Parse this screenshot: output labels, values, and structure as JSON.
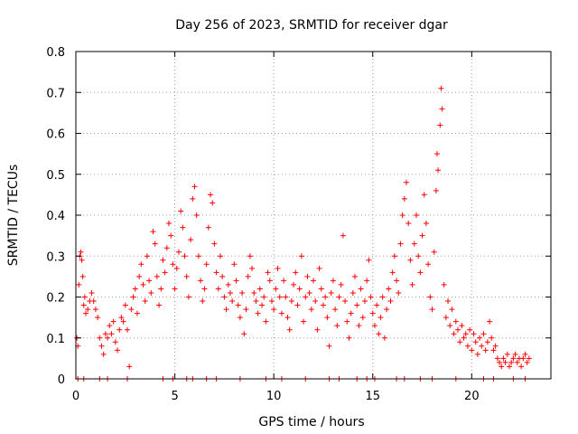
{
  "chart_data": {
    "type": "scatter",
    "title": "Day 256 of 2023, SRMTID for receiver dgar",
    "xlabel": "GPS time / hours",
    "ylabel": "SRMTID / TECUs",
    "xlim": [
      0,
      24
    ],
    "ylim": [
      0,
      0.8
    ],
    "xticks": [
      0,
      5,
      10,
      15,
      20
    ],
    "xtick_labels": [
      "0",
      "5",
      "10",
      "15",
      "20"
    ],
    "yticks": [
      0,
      0.1,
      0.2,
      0.3,
      0.4,
      0.5,
      0.6,
      0.7,
      0.8
    ],
    "ytick_labels": [
      "0",
      "0.1",
      "0.2",
      "0.3",
      "0.4",
      "0.5",
      "0.6",
      "0.7",
      "0.8"
    ],
    "grid": true,
    "marker": "+",
    "color": "#ff0000",
    "series": [
      {
        "name": "SRMTID",
        "points": [
          [
            0.05,
            0.1
          ],
          [
            0.1,
            0.08
          ],
          [
            0.15,
            0.23
          ],
          [
            0.2,
            0.3
          ],
          [
            0.25,
            0.31
          ],
          [
            0.3,
            0.29
          ],
          [
            0.35,
            0.25
          ],
          [
            0.4,
            0.18
          ],
          [
            0.45,
            0.2
          ],
          [
            0.5,
            0.16
          ],
          [
            0.6,
            0.17
          ],
          [
            0.7,
            0.19
          ],
          [
            0.8,
            0.21
          ],
          [
            0.9,
            0.19
          ],
          [
            1.0,
            0.17
          ],
          [
            1.1,
            0.15
          ],
          [
            1.2,
            0.1
          ],
          [
            1.3,
            0.08
          ],
          [
            1.4,
            0.06
          ],
          [
            1.5,
            0.11
          ],
          [
            1.6,
            0.1
          ],
          [
            1.7,
            0.13
          ],
          [
            1.8,
            0.11
          ],
          [
            1.9,
            0.14
          ],
          [
            2.0,
            0.09
          ],
          [
            2.1,
            0.07
          ],
          [
            2.2,
            0.12
          ],
          [
            2.3,
            0.15
          ],
          [
            2.4,
            0.14
          ],
          [
            2.5,
            0.18
          ],
          [
            2.6,
            0.12
          ],
          [
            2.7,
            0.03
          ],
          [
            2.8,
            0.17
          ],
          [
            2.9,
            0.2
          ],
          [
            3.0,
            0.22
          ],
          [
            3.1,
            0.16
          ],
          [
            3.2,
            0.25
          ],
          [
            3.3,
            0.28
          ],
          [
            3.4,
            0.23
          ],
          [
            3.5,
            0.19
          ],
          [
            3.6,
            0.3
          ],
          [
            3.7,
            0.24
          ],
          [
            3.8,
            0.21
          ],
          [
            3.9,
            0.36
          ],
          [
            4.0,
            0.33
          ],
          [
            4.1,
            0.25
          ],
          [
            4.2,
            0.18
          ],
          [
            4.3,
            0.22
          ],
          [
            4.4,
            0.29
          ],
          [
            4.5,
            0.26
          ],
          [
            4.6,
            0.32
          ],
          [
            4.7,
            0.38
          ],
          [
            4.8,
            0.35
          ],
          [
            4.9,
            0.28
          ],
          [
            5.0,
            0.22
          ],
          [
            5.1,
            0.27
          ],
          [
            5.2,
            0.31
          ],
          [
            5.3,
            0.41
          ],
          [
            5.4,
            0.37
          ],
          [
            5.5,
            0.3
          ],
          [
            5.6,
            0.25
          ],
          [
            5.7,
            0.2
          ],
          [
            5.8,
            0.34
          ],
          [
            5.9,
            0.44
          ],
          [
            6.0,
            0.47
          ],
          [
            6.1,
            0.4
          ],
          [
            6.2,
            0.3
          ],
          [
            6.3,
            0.24
          ],
          [
            6.4,
            0.19
          ],
          [
            6.5,
            0.22
          ],
          [
            6.6,
            0.28
          ],
          [
            6.7,
            0.37
          ],
          [
            6.8,
            0.45
          ],
          [
            6.9,
            0.43
          ],
          [
            7.0,
            0.33
          ],
          [
            7.1,
            0.26
          ],
          [
            7.2,
            0.22
          ],
          [
            7.3,
            0.3
          ],
          [
            7.4,
            0.25
          ],
          [
            7.5,
            0.2
          ],
          [
            7.6,
            0.17
          ],
          [
            7.7,
            0.23
          ],
          [
            7.8,
            0.21
          ],
          [
            7.9,
            0.19
          ],
          [
            8.0,
            0.28
          ],
          [
            8.1,
            0.24
          ],
          [
            8.2,
            0.18
          ],
          [
            8.3,
            0.15
          ],
          [
            8.4,
            0.21
          ],
          [
            8.5,
            0.11
          ],
          [
            8.6,
            0.17
          ],
          [
            8.7,
            0.25
          ],
          [
            8.8,
            0.3
          ],
          [
            8.9,
            0.27
          ],
          [
            9.0,
            0.21
          ],
          [
            9.1,
            0.19
          ],
          [
            9.2,
            0.16
          ],
          [
            9.3,
            0.22
          ],
          [
            9.4,
            0.18
          ],
          [
            9.5,
            0.2
          ],
          [
            9.6,
            0.14
          ],
          [
            9.7,
            0.26
          ],
          [
            9.8,
            0.24
          ],
          [
            9.9,
            0.19
          ],
          [
            10.0,
            0.17
          ],
          [
            10.1,
            0.22
          ],
          [
            10.2,
            0.27
          ],
          [
            10.3,
            0.2
          ],
          [
            10.4,
            0.16
          ],
          [
            10.5,
            0.24
          ],
          [
            10.6,
            0.2
          ],
          [
            10.7,
            0.15
          ],
          [
            10.8,
            0.12
          ],
          [
            10.9,
            0.19
          ],
          [
            11.0,
            0.23
          ],
          [
            11.1,
            0.26
          ],
          [
            11.2,
            0.18
          ],
          [
            11.3,
            0.22
          ],
          [
            11.4,
            0.3
          ],
          [
            11.5,
            0.14
          ],
          [
            11.6,
            0.2
          ],
          [
            11.7,
            0.25
          ],
          [
            11.8,
            0.21
          ],
          [
            11.9,
            0.17
          ],
          [
            12.0,
            0.24
          ],
          [
            12.1,
            0.19
          ],
          [
            12.2,
            0.12
          ],
          [
            12.3,
            0.27
          ],
          [
            12.4,
            0.22
          ],
          [
            12.5,
            0.18
          ],
          [
            12.6,
            0.2
          ],
          [
            12.7,
            0.15
          ],
          [
            12.8,
            0.08
          ],
          [
            12.9,
            0.21
          ],
          [
            13.0,
            0.24
          ],
          [
            13.1,
            0.17
          ],
          [
            13.2,
            0.13
          ],
          [
            13.3,
            0.2
          ],
          [
            13.4,
            0.23
          ],
          [
            13.5,
            0.35
          ],
          [
            13.6,
            0.19
          ],
          [
            13.7,
            0.14
          ],
          [
            13.8,
            0.1
          ],
          [
            13.9,
            0.16
          ],
          [
            14.0,
            0.21
          ],
          [
            14.1,
            0.25
          ],
          [
            14.2,
            0.18
          ],
          [
            14.3,
            0.13
          ],
          [
            14.4,
            0.22
          ],
          [
            14.5,
            0.15
          ],
          [
            14.6,
            0.19
          ],
          [
            14.7,
            0.24
          ],
          [
            14.8,
            0.29
          ],
          [
            14.9,
            0.2
          ],
          [
            15.0,
            0.16
          ],
          [
            15.1,
            0.13
          ],
          [
            15.2,
            0.18
          ],
          [
            15.3,
            0.11
          ],
          [
            15.4,
            0.15
          ],
          [
            15.5,
            0.2
          ],
          [
            15.6,
            0.1
          ],
          [
            15.7,
            0.17
          ],
          [
            15.8,
            0.22
          ],
          [
            15.9,
            0.19
          ],
          [
            16.0,
            0.26
          ],
          [
            16.1,
            0.3
          ],
          [
            16.2,
            0.24
          ],
          [
            16.3,
            0.21
          ],
          [
            16.4,
            0.33
          ],
          [
            16.5,
            0.4
          ],
          [
            16.6,
            0.44
          ],
          [
            16.7,
            0.48
          ],
          [
            16.8,
            0.38
          ],
          [
            16.9,
            0.29
          ],
          [
            17.0,
            0.23
          ],
          [
            17.1,
            0.33
          ],
          [
            17.2,
            0.4
          ],
          [
            17.3,
            0.3
          ],
          [
            17.4,
            0.26
          ],
          [
            17.5,
            0.35
          ],
          [
            17.6,
            0.45
          ],
          [
            17.7,
            0.38
          ],
          [
            17.8,
            0.28
          ],
          [
            17.9,
            0.2
          ],
          [
            18.0,
            0.17
          ],
          [
            18.1,
            0.31
          ],
          [
            18.2,
            0.46
          ],
          [
            18.25,
            0.55
          ],
          [
            18.3,
            0.51
          ],
          [
            18.4,
            0.62
          ],
          [
            18.45,
            0.71
          ],
          [
            18.5,
            0.66
          ],
          [
            18.6,
            0.23
          ],
          [
            18.7,
            0.15
          ],
          [
            18.8,
            0.19
          ],
          [
            18.9,
            0.13
          ],
          [
            19.0,
            0.17
          ],
          [
            19.1,
            0.11
          ],
          [
            19.2,
            0.14
          ],
          [
            19.3,
            0.12
          ],
          [
            19.4,
            0.09
          ],
          [
            19.5,
            0.13
          ],
          [
            19.6,
            0.1
          ],
          [
            19.7,
            0.11
          ],
          [
            19.8,
            0.08
          ],
          [
            19.9,
            0.12
          ],
          [
            20.0,
            0.07
          ],
          [
            20.1,
            0.11
          ],
          [
            20.2,
            0.09
          ],
          [
            20.3,
            0.06
          ],
          [
            20.4,
            0.1
          ],
          [
            20.5,
            0.08
          ],
          [
            20.6,
            0.11
          ],
          [
            20.7,
            0.07
          ],
          [
            20.8,
            0.09
          ],
          [
            20.9,
            0.14
          ],
          [
            21.0,
            0.1
          ],
          [
            21.1,
            0.07
          ],
          [
            21.2,
            0.08
          ],
          [
            21.3,
            0.05
          ],
          [
            21.4,
            0.04
          ],
          [
            21.5,
            0.03
          ],
          [
            21.6,
            0.05
          ],
          [
            21.7,
            0.04
          ],
          [
            21.8,
            0.06
          ],
          [
            21.9,
            0.03
          ],
          [
            22.0,
            0.04
          ],
          [
            22.1,
            0.05
          ],
          [
            22.2,
            0.06
          ],
          [
            22.3,
            0.04
          ],
          [
            22.4,
            0.05
          ],
          [
            22.5,
            0.03
          ],
          [
            22.6,
            0.05
          ],
          [
            22.7,
            0.06
          ],
          [
            22.8,
            0.04
          ],
          [
            22.9,
            0.05
          ]
        ]
      }
    ],
    "zero_points_x": [
      0.1,
      0.4,
      1.2,
      1.6,
      2.6,
      4.4,
      4.9,
      5.6,
      5.9,
      6.6,
      7.1,
      8.3,
      9.6,
      10.4,
      11.6,
      12.8,
      13.3,
      14.2,
      14.7,
      15.1,
      16.2,
      16.6,
      17.4,
      18.0,
      19.2,
      20.6,
      21.1,
      22.1,
      22.7
    ]
  }
}
